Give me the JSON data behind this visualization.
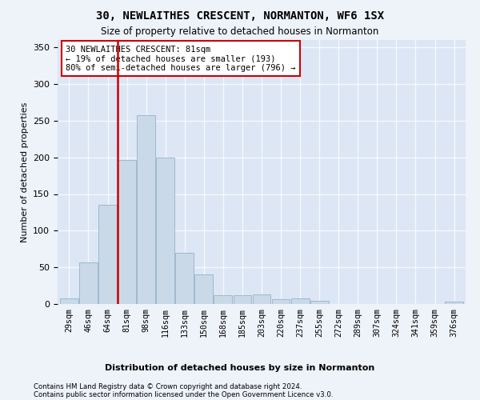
{
  "title1": "30, NEWLAITHES CRESCENT, NORMANTON, WF6 1SX",
  "title2": "Size of property relative to detached houses in Normanton",
  "xlabel": "Distribution of detached houses by size in Normanton",
  "ylabel": "Number of detached properties",
  "categories": [
    "29sqm",
    "46sqm",
    "64sqm",
    "81sqm",
    "98sqm",
    "116sqm",
    "133sqm",
    "150sqm",
    "168sqm",
    "185sqm",
    "203sqm",
    "220sqm",
    "237sqm",
    "255sqm",
    "272sqm",
    "289sqm",
    "307sqm",
    "324sqm",
    "341sqm",
    "359sqm",
    "376sqm"
  ],
  "values": [
    8,
    57,
    135,
    196,
    257,
    200,
    70,
    40,
    12,
    12,
    13,
    7,
    8,
    4,
    0,
    0,
    0,
    0,
    0,
    0,
    3
  ],
  "bar_color": "#c9d9e8",
  "bar_edge_color": "#a0b8cc",
  "marker_bin_index": 3,
  "vline_color": "#cc0000",
  "annotation_text": "30 NEWLAITHES CRESCENT: 81sqm\n← 19% of detached houses are smaller (193)\n80% of semi-detached houses are larger (796) →",
  "annotation_box_color": "#ffffff",
  "annotation_border_color": "#cc0000",
  "footer1": "Contains HM Land Registry data © Crown copyright and database right 2024.",
  "footer2": "Contains public sector information licensed under the Open Government Licence v3.0.",
  "ylim": [
    0,
    360
  ],
  "yticks": [
    0,
    50,
    100,
    150,
    200,
    250,
    300,
    350
  ],
  "background_color": "#eef2f9",
  "plot_bg_color": "#dce6f5"
}
